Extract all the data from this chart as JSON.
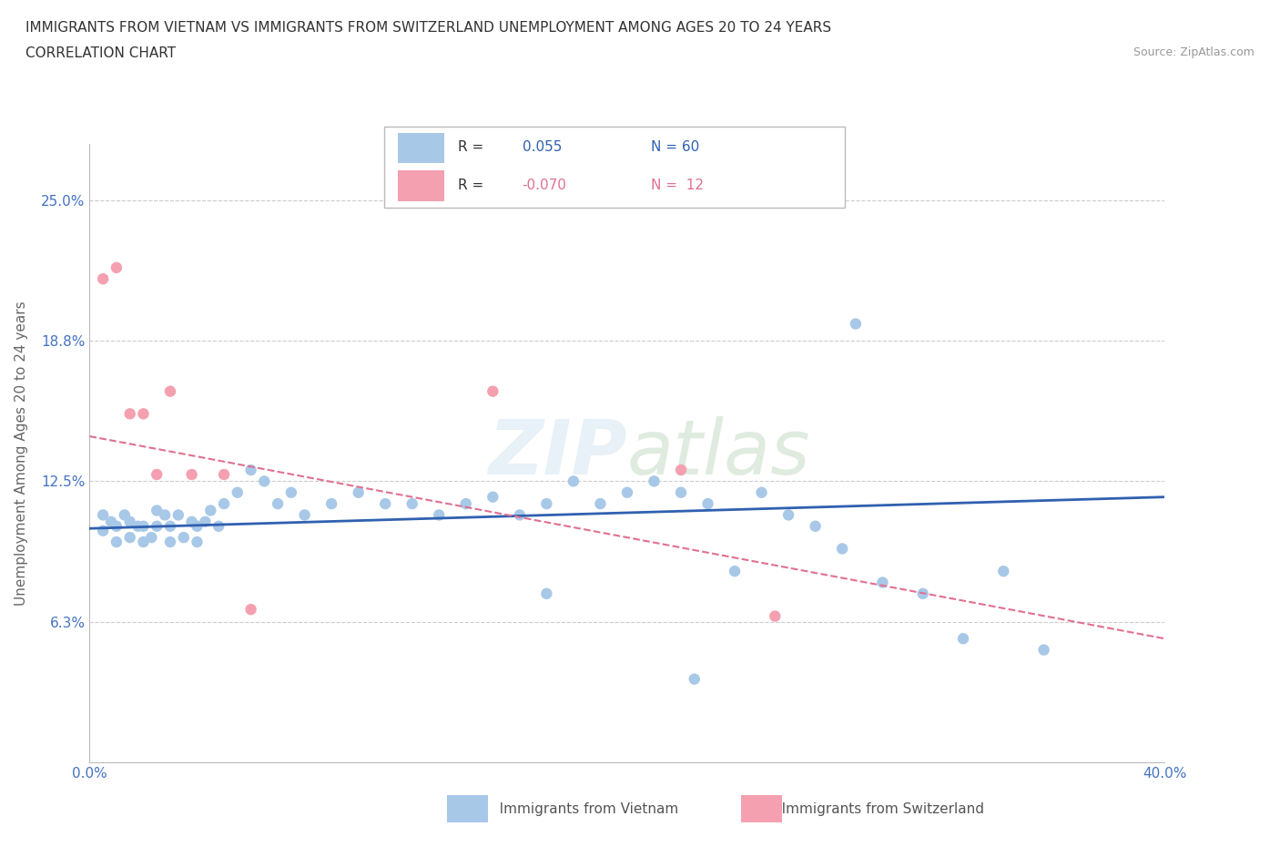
{
  "title_line1": "IMMIGRANTS FROM VIETNAM VS IMMIGRANTS FROM SWITZERLAND UNEMPLOYMENT AMONG AGES 20 TO 24 YEARS",
  "title_line2": "CORRELATION CHART",
  "source_text": "Source: ZipAtlas.com",
  "ylabel": "Unemployment Among Ages 20 to 24 years",
  "xlim": [
    0.0,
    0.4
  ],
  "ylim": [
    0.0,
    0.275
  ],
  "ytick_vals": [
    0.0,
    0.0625,
    0.125,
    0.1875,
    0.25
  ],
  "ytick_labels": [
    "",
    "6.3%",
    "12.5%",
    "18.8%",
    "25.0%"
  ],
  "xtick_vals": [
    0.0,
    0.05,
    0.1,
    0.15,
    0.2,
    0.25,
    0.3,
    0.35,
    0.4
  ],
  "xtick_labels": [
    "0.0%",
    "",
    "",
    "",
    "",
    "",
    "",
    "",
    "40.0%"
  ],
  "vietnam_R": 0.055,
  "vietnam_N": 60,
  "switzerland_R": -0.07,
  "switzerland_N": 12,
  "vietnam_color": "#a8c8e8",
  "switzerland_color": "#f4a0b0",
  "vietnam_line_color": "#3060b0",
  "switzerland_line_color": "#e07090",
  "tick_label_color": "#4472c4",
  "vietnam_x": [
    0.005,
    0.005,
    0.008,
    0.01,
    0.01,
    0.013,
    0.015,
    0.015,
    0.018,
    0.02,
    0.02,
    0.023,
    0.025,
    0.025,
    0.028,
    0.03,
    0.03,
    0.033,
    0.035,
    0.038,
    0.04,
    0.04,
    0.043,
    0.045,
    0.048,
    0.05,
    0.055,
    0.06,
    0.065,
    0.07,
    0.075,
    0.08,
    0.09,
    0.1,
    0.11,
    0.12,
    0.13,
    0.14,
    0.15,
    0.16,
    0.17,
    0.18,
    0.19,
    0.2,
    0.21,
    0.22,
    0.23,
    0.24,
    0.25,
    0.26,
    0.27,
    0.28,
    0.295,
    0.31,
    0.325,
    0.34,
    0.355,
    0.285,
    0.225,
    0.17
  ],
  "vietnam_y": [
    0.103,
    0.11,
    0.107,
    0.098,
    0.105,
    0.11,
    0.1,
    0.107,
    0.105,
    0.098,
    0.105,
    0.1,
    0.105,
    0.112,
    0.11,
    0.098,
    0.105,
    0.11,
    0.1,
    0.107,
    0.105,
    0.098,
    0.107,
    0.112,
    0.105,
    0.115,
    0.12,
    0.13,
    0.125,
    0.115,
    0.12,
    0.11,
    0.115,
    0.12,
    0.115,
    0.115,
    0.11,
    0.115,
    0.118,
    0.11,
    0.115,
    0.125,
    0.115,
    0.12,
    0.125,
    0.12,
    0.115,
    0.085,
    0.12,
    0.11,
    0.105,
    0.095,
    0.08,
    0.075,
    0.055,
    0.085,
    0.05,
    0.195,
    0.037,
    0.075
  ],
  "switzerland_x": [
    0.005,
    0.01,
    0.015,
    0.02,
    0.025,
    0.03,
    0.038,
    0.05,
    0.06,
    0.15,
    0.22,
    0.255
  ],
  "switzerland_y": [
    0.215,
    0.22,
    0.155,
    0.155,
    0.128,
    0.165,
    0.128,
    0.128,
    0.068,
    0.165,
    0.13,
    0.065
  ]
}
